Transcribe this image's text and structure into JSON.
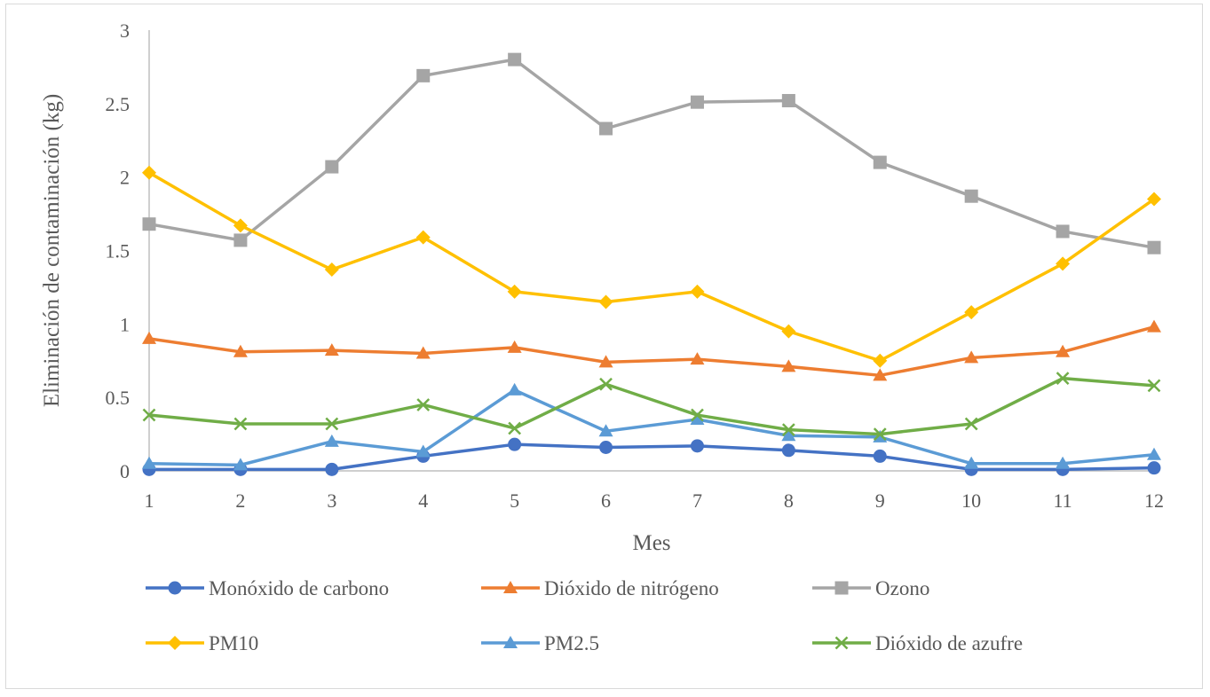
{
  "chart_data": {
    "type": "line",
    "title": "",
    "xlabel": "Mes",
    "ylabel": "Eliminación de contaminación (kg)",
    "categories": [
      "1",
      "2",
      "3",
      "4",
      "5",
      "6",
      "7",
      "8",
      "9",
      "10",
      "11",
      "12"
    ],
    "ylim": [
      0,
      3
    ],
    "yticks": [
      "0",
      "0.5",
      "1",
      "1.5",
      "2",
      "2.5",
      "3"
    ],
    "grid": false,
    "legend_position": "bottom",
    "series": [
      {
        "name": "Monóxido de carbono",
        "color": "#4472c4",
        "marker": "circle",
        "values": [
          0.01,
          0.01,
          0.01,
          0.1,
          0.18,
          0.16,
          0.17,
          0.14,
          0.1,
          0.01,
          0.01,
          0.02
        ]
      },
      {
        "name": "Dióxido de nitrógeno",
        "color": "#ed7d31",
        "marker": "triangle",
        "values": [
          0.9,
          0.81,
          0.82,
          0.8,
          0.84,
          0.74,
          0.76,
          0.71,
          0.65,
          0.77,
          0.81,
          0.98
        ]
      },
      {
        "name": "Ozono",
        "color": "#a5a5a5",
        "marker": "square",
        "values": [
          1.68,
          1.57,
          2.07,
          2.69,
          2.8,
          2.33,
          2.51,
          2.52,
          2.1,
          1.87,
          1.63,
          1.52
        ]
      },
      {
        "name": "PM10",
        "color": "#ffc000",
        "marker": "diamond",
        "values": [
          2.03,
          1.67,
          1.37,
          1.59,
          1.22,
          1.15,
          1.22,
          0.95,
          0.75,
          1.08,
          1.41,
          1.85
        ]
      },
      {
        "name": "PM2.5",
        "color": "#5b9bd5",
        "marker": "triangle",
        "values": [
          0.05,
          0.04,
          0.2,
          0.13,
          0.55,
          0.27,
          0.35,
          0.24,
          0.23,
          0.05,
          0.05,
          0.11
        ]
      },
      {
        "name": "Dióxido de azufre",
        "color": "#70ad47",
        "marker": "x",
        "values": [
          0.38,
          0.32,
          0.32,
          0.45,
          0.29,
          0.59,
          0.38,
          0.28,
          0.25,
          0.32,
          0.63,
          0.58
        ]
      }
    ]
  }
}
